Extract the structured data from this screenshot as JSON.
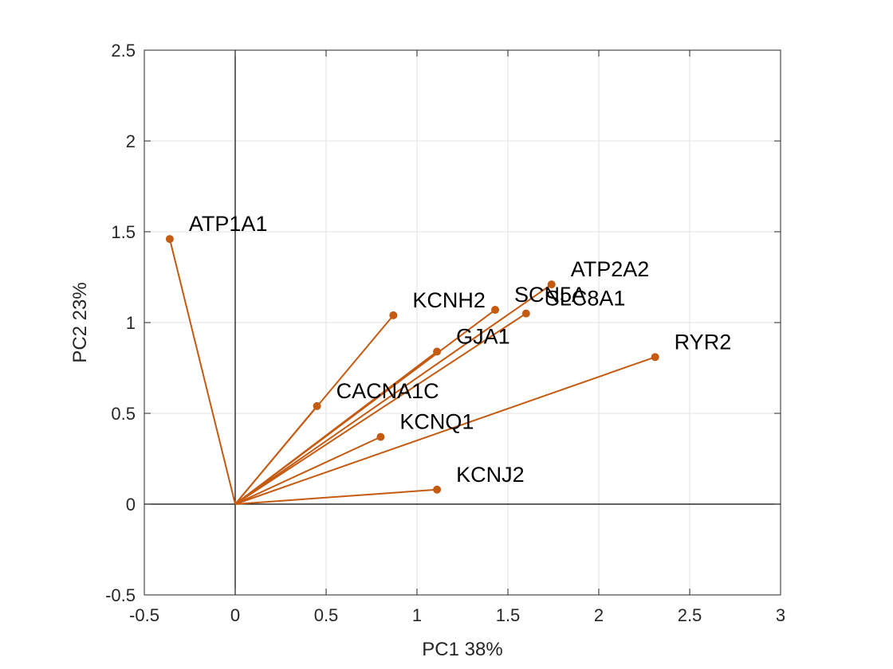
{
  "chart_data": {
    "type": "scatter",
    "subtype": "biplot",
    "title": "",
    "xlabel": "PC1 38%",
    "ylabel": "PC2 23%",
    "xlim": [
      -0.5,
      3
    ],
    "ylim": [
      -0.5,
      2.5
    ],
    "x_ticks": [
      "-0.5",
      "0",
      "0.5",
      "1",
      "1.5",
      "2",
      "2.5",
      "3"
    ],
    "y_ticks": [
      "-0.5",
      "0",
      "0.5",
      "1",
      "1.5",
      "2",
      "2.5"
    ],
    "grid": true,
    "origin_axes": true,
    "vector_color": "#C55A11",
    "points": [
      {
        "label": "ATP1A1",
        "x": -0.36,
        "y": 1.46
      },
      {
        "label": "KCNH2",
        "x": 0.87,
        "y": 1.04
      },
      {
        "label": "SCN5A",
        "x": 1.43,
        "y": 1.07
      },
      {
        "label": "ATP2A2",
        "x": 1.74,
        "y": 1.21
      },
      {
        "label": "SLC8A1",
        "x": 1.6,
        "y": 1.05
      },
      {
        "label": "GJA1",
        "x": 1.11,
        "y": 0.84
      },
      {
        "label": "RYR2",
        "x": 2.31,
        "y": 0.81
      },
      {
        "label": "CACNA1C",
        "x": 0.45,
        "y": 0.54
      },
      {
        "label": "KCNQ1",
        "x": 0.8,
        "y": 0.37
      },
      {
        "label": "KCNJ2",
        "x": 1.11,
        "y": 0.08
      }
    ]
  }
}
